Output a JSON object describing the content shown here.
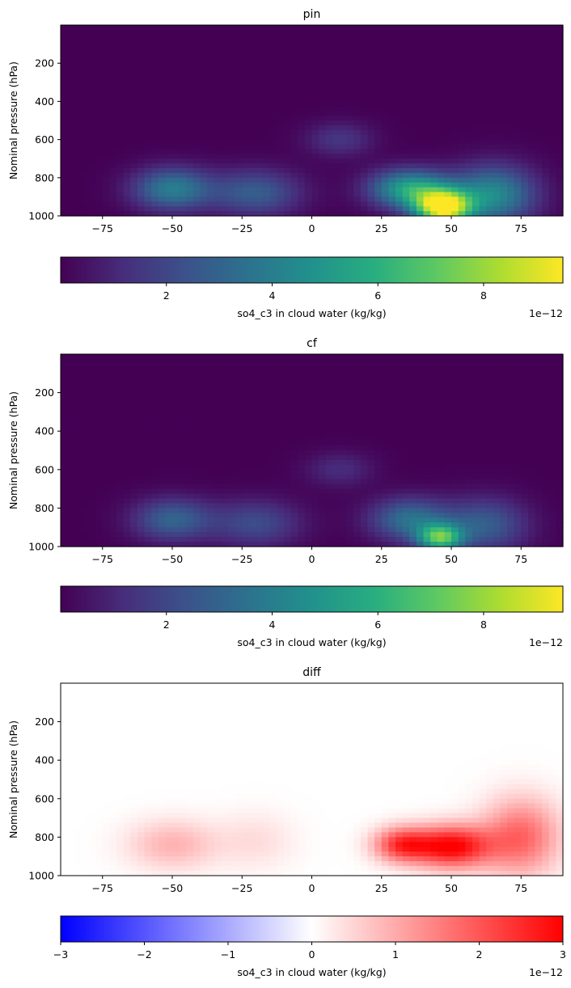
{
  "chart_data": [
    {
      "type": "heatmap",
      "title": "pin",
      "xlabel": "",
      "ylabel": "Nominal pressure (hPa)",
      "xlim": [
        -90,
        90
      ],
      "ylim": [
        1000,
        0
      ],
      "xticks": [
        "−75",
        "−50",
        "−25",
        "0",
        "25",
        "50",
        "75"
      ],
      "xtick_values": [
        -75,
        -50,
        -25,
        0,
        25,
        50,
        75
      ],
      "yticks": [
        "200",
        "400",
        "600",
        "800",
        "1000"
      ],
      "ytick_values": [
        200,
        400,
        600,
        800,
        1000
      ],
      "colormap": "viridis",
      "colorbar": {
        "label": "so4_c3 in cloud water (kg/kg)",
        "range": [
          0,
          9.5
        ],
        "ticks": [
          "2",
          "4",
          "6",
          "8"
        ],
        "tick_values": [
          2,
          4,
          6,
          8
        ],
        "offset": "1e−12"
      },
      "features": [
        {
          "lat": 47,
          "p": 955,
          "value": 9.5,
          "wlat": 10,
          "wp": 90
        },
        {
          "lat": 35,
          "p": 860,
          "value": 5.5,
          "wlat": 14,
          "wp": 100
        },
        {
          "lat": 65,
          "p": 890,
          "value": 4.5,
          "wlat": 15,
          "wp": 150
        },
        {
          "lat": -50,
          "p": 860,
          "value": 4.0,
          "wlat": 14,
          "wp": 110
        },
        {
          "lat": -20,
          "p": 880,
          "value": 2.8,
          "wlat": 16,
          "wp": 120
        },
        {
          "lat": 10,
          "p": 600,
          "value": 1.5,
          "wlat": 12,
          "wp": 90
        }
      ]
    },
    {
      "type": "heatmap",
      "title": "cf",
      "xlabel": "",
      "ylabel": "Nominal pressure (hPa)",
      "xlim": [
        -90,
        90
      ],
      "ylim": [
        1000,
        0
      ],
      "xticks": [
        "−75",
        "−50",
        "−25",
        "0",
        "25",
        "50",
        "75"
      ],
      "xtick_values": [
        -75,
        -50,
        -25,
        0,
        25,
        50,
        75
      ],
      "yticks": [
        "200",
        "400",
        "600",
        "800",
        "1000"
      ],
      "ytick_values": [
        200,
        400,
        600,
        800,
        1000
      ],
      "colormap": "viridis",
      "colorbar": {
        "label": "so4_c3 in cloud water (kg/kg)",
        "range": [
          0,
          9.5
        ],
        "ticks": [
          "2",
          "4",
          "6",
          "8"
        ],
        "tick_values": [
          2,
          4,
          6,
          8
        ],
        "offset": "1e−12"
      },
      "features": [
        {
          "lat": 46,
          "p": 955,
          "value": 6.2,
          "wlat": 8,
          "wp": 70
        },
        {
          "lat": 35,
          "p": 860,
          "value": 3.5,
          "wlat": 14,
          "wp": 110
        },
        {
          "lat": 62,
          "p": 890,
          "value": 2.8,
          "wlat": 15,
          "wp": 140
        },
        {
          "lat": -50,
          "p": 860,
          "value": 3.0,
          "wlat": 14,
          "wp": 110
        },
        {
          "lat": -20,
          "p": 880,
          "value": 2.2,
          "wlat": 16,
          "wp": 120
        },
        {
          "lat": 10,
          "p": 600,
          "value": 1.2,
          "wlat": 12,
          "wp": 90
        }
      ]
    },
    {
      "type": "heatmap",
      "title": "diff",
      "xlabel": "",
      "ylabel": "Nominal pressure (hPa)",
      "xlim": [
        -90,
        90
      ],
      "ylim": [
        1000,
        0
      ],
      "xticks": [
        "−75",
        "−50",
        "−25",
        "0",
        "25",
        "50",
        "75"
      ],
      "xtick_values": [
        -75,
        -50,
        -25,
        0,
        25,
        50,
        75
      ],
      "yticks": [
        "200",
        "400",
        "600",
        "800",
        "1000"
      ],
      "ytick_values": [
        200,
        400,
        600,
        800,
        1000
      ],
      "colormap": "bwr",
      "colorbar": {
        "label": "so4_c3 in cloud water (kg/kg)",
        "range": [
          -3,
          3
        ],
        "ticks": [
          "−3",
          "−2",
          "−1",
          "0",
          "1",
          "2",
          "3"
        ],
        "tick_values": [
          -3,
          -2,
          -1,
          0,
          1,
          2,
          3
        ],
        "offset": "1e−12"
      },
      "features": [
        {
          "lat": 50,
          "p": 850,
          "value": 3.0,
          "wlat": 14,
          "wp": 110
        },
        {
          "lat": 32,
          "p": 840,
          "value": 2.2,
          "wlat": 10,
          "wp": 90
        },
        {
          "lat": 75,
          "p": 800,
          "value": 1.8,
          "wlat": 14,
          "wp": 200
        },
        {
          "lat": -50,
          "p": 840,
          "value": 0.9,
          "wlat": 16,
          "wp": 130
        },
        {
          "lat": -20,
          "p": 820,
          "value": 0.4,
          "wlat": 14,
          "wp": 150
        }
      ]
    }
  ]
}
